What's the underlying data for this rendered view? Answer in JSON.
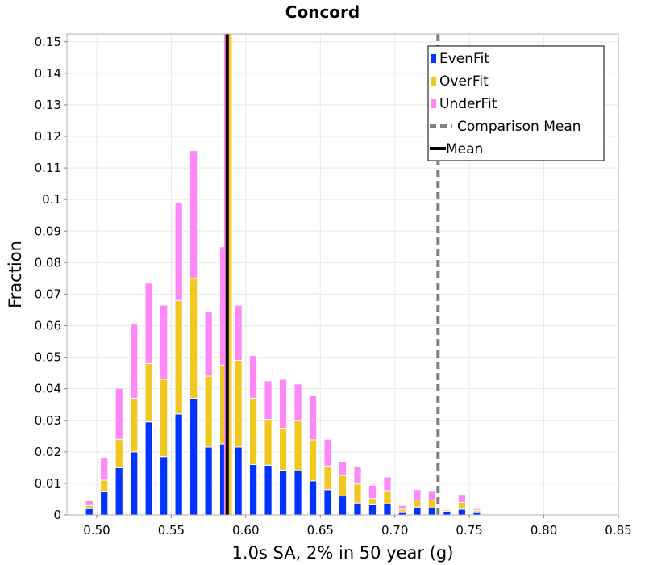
{
  "chart_data": {
    "type": "bar",
    "stacked": true,
    "title": "Concord",
    "xlabel": "1.0s SA, 2% in 50 year (g)",
    "ylabel": "Fraction",
    "xlim": [
      0.48,
      0.85
    ],
    "ylim": [
      0,
      0.1525
    ],
    "grid": true,
    "legend_position": "top-right",
    "x_ticks": [
      "0.50",
      "0.55",
      "0.60",
      "0.65",
      "0.70",
      "0.75",
      "0.80",
      "0.85"
    ],
    "y_ticks": [
      "0",
      "0.01",
      "0.02",
      "0.03",
      "0.04",
      "0.05",
      "0.06",
      "0.07",
      "0.08",
      "0.09",
      "0.1",
      "0.11",
      "0.12",
      "0.13",
      "0.14",
      "0.15"
    ],
    "bin_width": 0.005,
    "x": [
      0.495,
      0.5,
      0.505,
      0.51,
      0.515,
      0.52,
      0.525,
      0.53,
      0.535,
      0.54,
      0.545,
      0.55,
      0.555,
      0.56,
      0.565,
      0.57,
      0.575,
      0.58,
      0.585,
      0.59,
      0.595,
      0.6,
      0.605,
      0.61,
      0.615,
      0.62,
      0.625,
      0.63,
      0.635,
      0.64,
      0.645,
      0.65,
      0.655,
      0.66,
      0.665,
      0.67,
      0.675,
      0.68,
      0.685,
      0.69,
      0.695,
      0.7,
      0.705,
      0.71,
      0.715,
      0.72,
      0.725,
      0.73,
      0.735,
      0.74,
      0.745,
      0.75,
      0.755,
      0.76
    ],
    "series": [
      {
        "name": "EvenFit",
        "color": "#0033ff",
        "values": [
          0.002,
          0,
          0.0075,
          0,
          0.015,
          0,
          0.02,
          0,
          0.0295,
          0,
          0.0185,
          0,
          0.032,
          0,
          0.037,
          0,
          0.0215,
          0,
          0.0225,
          0,
          0.0215,
          0,
          0.016,
          0,
          0.0158,
          0,
          0.0142,
          0,
          0.014,
          0,
          0.0108,
          0,
          0.008,
          0,
          0.006,
          0,
          0.0038,
          0,
          0.0032,
          0,
          0.0035,
          0,
          0.001,
          0,
          0.0025,
          0,
          0.0022,
          0,
          0.0012,
          0,
          0.0018,
          0,
          0.001,
          0
        ]
      },
      {
        "name": "OverFit",
        "color": "#f0c820",
        "values": [
          0.001,
          0,
          0.0035,
          0,
          0.009,
          0,
          0.017,
          0,
          0.0185,
          0,
          0.0245,
          0,
          0.036,
          0,
          0.038,
          0,
          0.0225,
          0,
          0.025,
          0,
          0.0275,
          0,
          0.021,
          0,
          0.0145,
          0,
          0.0133,
          0,
          0.016,
          0,
          0.013,
          0,
          0.0075,
          0,
          0.0065,
          0,
          0.006,
          0,
          0.002,
          0,
          0.0042,
          0,
          0.0008,
          0,
          0.0022,
          0,
          0.0025,
          0,
          0.0005,
          0,
          0.0022,
          0,
          0.0005,
          0
        ]
      },
      {
        "name": "UnderFit",
        "color": "#ff88f8",
        "values": [
          0.0015,
          0,
          0.0072,
          0,
          0.0162,
          0,
          0.0235,
          0,
          0.0255,
          0,
          0.0235,
          0,
          0.0312,
          0,
          0.0405,
          0,
          0.0205,
          0,
          0.0375,
          0,
          0.0175,
          0,
          0.0135,
          0,
          0.0122,
          0,
          0.0155,
          0,
          0.0115,
          0,
          0.014,
          0,
          0.0085,
          0,
          0.0045,
          0,
          0.0055,
          0,
          0.0042,
          0,
          0.0043,
          0,
          0.0012,
          0,
          0.0033,
          0,
          0.003,
          0,
          0.0003,
          0,
          0.0025,
          0,
          0.0005,
          0
        ]
      }
    ],
    "reference_lines": [
      {
        "name": "Comparison Mean",
        "x": 0.729,
        "style": "dashed",
        "color": "#808080"
      },
      {
        "name": "Mean",
        "x": 0.5875,
        "style": "solid",
        "color": "#000000"
      }
    ],
    "extra_lines": [
      {
        "x": 0.5865,
        "color": "#ff88f8"
      },
      {
        "x": 0.5895,
        "color": "#f0c820"
      }
    ]
  }
}
